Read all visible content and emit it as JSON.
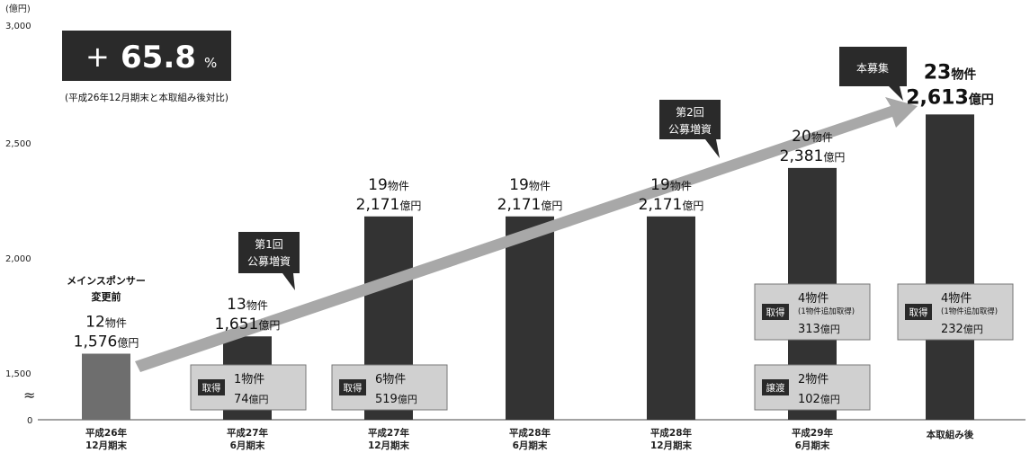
{
  "chart_data": {
    "type": "bar",
    "yunit": "(億円)",
    "yticks": [
      "3,000",
      "2,500",
      "2,000",
      "1,500",
      "0"
    ],
    "categories": [
      {
        "line1": "平成26年",
        "line2": "12月期末"
      },
      {
        "line1": "平成27年",
        "line2": "6月期末"
      },
      {
        "line1": "平成27年",
        "line2": "12月期末"
      },
      {
        "line1": "平成28年",
        "line2": "6月期末"
      },
      {
        "line1": "平成28年",
        "line2": "12月期末"
      },
      {
        "line1": "平成29年",
        "line2": "6月期末"
      },
      {
        "line1": "本取組み後",
        "line2": ""
      }
    ],
    "values": [
      1576,
      1651,
      2171,
      2171,
      2171,
      2381,
      2613
    ],
    "ylim": [
      1500,
      3000
    ],
    "axis_break": "≈",
    "bar_colors": [
      "#6e6e6e",
      "#333333",
      "#333333",
      "#333333",
      "#333333",
      "#333333",
      "#333333"
    ],
    "bar_labels": [
      {
        "count": "12",
        "count_unit": "物件",
        "amount": "1,576",
        "amount_unit": "億円"
      },
      {
        "count": "13",
        "count_unit": "物件",
        "amount": "1,651",
        "amount_unit": "億円"
      },
      {
        "count": "19",
        "count_unit": "物件",
        "amount": "2,171",
        "amount_unit": "億円"
      },
      {
        "count": "19",
        "count_unit": "物件",
        "amount": "2,171",
        "amount_unit": "億円"
      },
      {
        "count": "19",
        "count_unit": "物件",
        "amount": "2,171",
        "amount_unit": "億円"
      },
      {
        "count": "20",
        "count_unit": "物件",
        "amount": "2,381",
        "amount_unit": "億円"
      },
      {
        "count": "23",
        "count_unit": "物件",
        "amount": "2,613",
        "amount_unit": "億円"
      }
    ],
    "sponsor_note": [
      "メインスポンサー",
      "変更前"
    ],
    "growth": {
      "sign": "+",
      "value": "65.8",
      "unit": "%",
      "note": "(平成26年12月期末と本取組み後対比)"
    },
    "callouts": [
      {
        "lines": [
          "第1回",
          "公募増資"
        ]
      },
      {
        "lines": [
          "第2回",
          "公募増資"
        ]
      },
      {
        "lines": [
          "本募集"
        ]
      }
    ],
    "boxes": [
      {
        "bar": 1,
        "tag": "取得",
        "line1": "1物件",
        "note": "",
        "line2_num": "74",
        "line2_unit": "億円"
      },
      {
        "bar": 2,
        "tag": "取得",
        "line1": "6物件",
        "note": "",
        "line2_num": "519",
        "line2_unit": "億円"
      },
      {
        "bar": 5,
        "tag": "取得",
        "line1": "4物件",
        "note": "(1物件追加取得)",
        "line2_num": "313",
        "line2_unit": "億円"
      },
      {
        "bar": 5,
        "tag": "譲渡",
        "line1": "2物件",
        "note": "",
        "line2_num": "102",
        "line2_unit": "億円"
      },
      {
        "bar": 6,
        "tag": "取得",
        "line1": "4物件",
        "note": "(1物件追加取得)",
        "line2_num": "232",
        "line2_unit": "億円"
      }
    ],
    "colors": {
      "arrow": "#a8a8a8",
      "box_fill": "#d0d0d0",
      "dark": "#2a2a2a"
    }
  }
}
